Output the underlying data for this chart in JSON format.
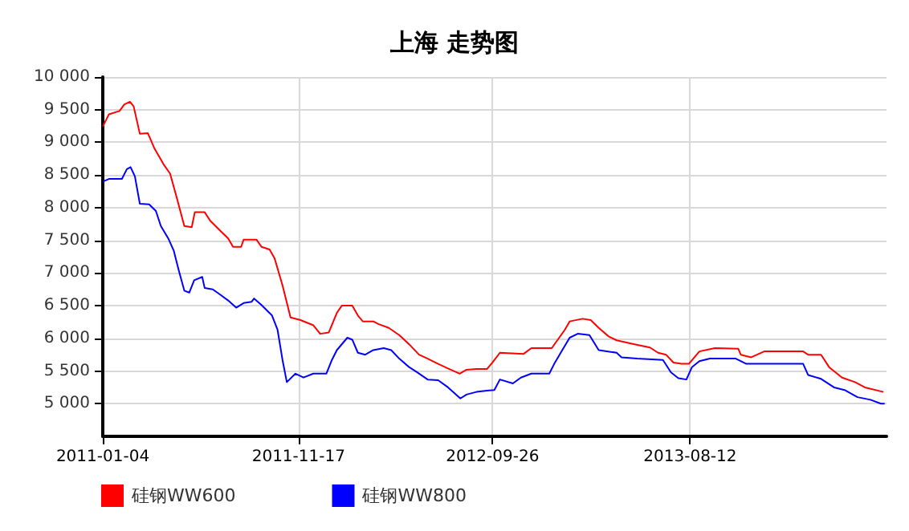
{
  "chart_data": {
    "type": "line",
    "title": "上海 走势图",
    "xlim": [
      "2011-01-04",
      "2014-06-26"
    ],
    "xticks": [
      "2011-01-04",
      "2011-11-17",
      "2012-09-26",
      "2013-08-12"
    ],
    "ylim": [
      4500,
      10000
    ],
    "yticks": [
      5000,
      5500,
      6000,
      6500,
      7000,
      7500,
      8000,
      8500,
      9000,
      9500,
      10000
    ],
    "grid": true,
    "legend": "bottom left",
    "marker": "none",
    "line_style": "solid",
    "series": [
      {
        "name": "硅钢WW600",
        "color": "#ff0000",
        "x": [
          "2011-01-04",
          "2011-01-14",
          "2011-01-31",
          "2011-02-08",
          "2011-02-17",
          "2011-02-23",
          "2011-03-05",
          "2011-03-18",
          "2011-03-29",
          "2011-04-12",
          "2011-04-23",
          "2011-05-03",
          "2011-05-16",
          "2011-05-28",
          "2011-06-02",
          "2011-06-18",
          "2011-06-27",
          "2011-07-13",
          "2011-07-26",
          "2011-08-03",
          "2011-08-16",
          "2011-08-20",
          "2011-09-10",
          "2011-09-18",
          "2011-10-01",
          "2011-10-09",
          "2011-10-22",
          "2011-11-04",
          "2011-11-20",
          "2011-12-11",
          "2011-12-22",
          "2012-01-05",
          "2012-01-18",
          "2012-01-26",
          "2012-02-12",
          "2012-02-21",
          "2012-02-29",
          "2012-03-17",
          "2012-03-25",
          "2012-04-11",
          "2012-04-28",
          "2012-05-14",
          "2012-05-30",
          "2012-06-13",
          "2012-06-30",
          "2012-07-16",
          "2012-08-04",
          "2012-08-15",
          "2012-08-31",
          "2012-09-17",
          "2012-09-26",
          "2012-10-08",
          "2012-11-15",
          "2012-11-28",
          "2012-12-31",
          "2013-01-09",
          "2013-01-21",
          "2013-01-29",
          "2013-02-19",
          "2013-03-04",
          "2013-03-17",
          "2013-04-02",
          "2013-04-15",
          "2013-05-14",
          "2013-06-08",
          "2013-06-21",
          "2013-07-04",
          "2013-07-16",
          "2013-07-29",
          "2013-08-10",
          "2013-08-27",
          "2013-09-21",
          "2013-10-29",
          "2013-11-02",
          "2013-11-19",
          "2013-12-10",
          "2014-02-11",
          "2014-02-19",
          "2014-03-12",
          "2014-03-25",
          "2014-04-15",
          "2014-05-06",
          "2014-05-22",
          "2014-06-21"
        ],
        "values": [
          9240,
          9430,
          9480,
          9580,
          9620,
          9550,
          9130,
          9140,
          8900,
          8670,
          8520,
          8180,
          7720,
          7700,
          7930,
          7930,
          7800,
          7650,
          7530,
          7400,
          7400,
          7510,
          7510,
          7400,
          7360,
          7230,
          6810,
          6320,
          6280,
          6200,
          6070,
          6090,
          6390,
          6500,
          6500,
          6350,
          6260,
          6260,
          6220,
          6160,
          6050,
          5910,
          5750,
          5690,
          5610,
          5540,
          5460,
          5520,
          5530,
          5530,
          5630,
          5780,
          5760,
          5850,
          5850,
          5970,
          6130,
          6260,
          6300,
          6280,
          6160,
          6030,
          5970,
          5910,
          5860,
          5780,
          5750,
          5630,
          5610,
          5610,
          5800,
          5850,
          5840,
          5750,
          5710,
          5800,
          5800,
          5750,
          5750,
          5560,
          5400,
          5330,
          5250,
          5180
        ]
      },
      {
        "name": "硅钢WW800",
        "color": "#0000ff",
        "x": [
          "2011-01-04",
          "2011-01-14",
          "2011-02-04",
          "2011-02-12",
          "2011-02-18",
          "2011-02-25",
          "2011-03-05",
          "2011-03-20",
          "2011-03-31",
          "2011-04-08",
          "2011-04-20",
          "2011-04-29",
          "2011-05-07",
          "2011-05-16",
          "2011-05-24",
          "2011-06-01",
          "2011-06-14",
          "2011-06-18",
          "2011-07-01",
          "2011-07-13",
          "2011-07-26",
          "2011-08-08",
          "2011-08-20",
          "2011-09-02",
          "2011-09-06",
          "2011-09-18",
          "2011-10-05",
          "2011-10-14",
          "2011-10-22",
          "2011-10-29",
          "2011-11-12",
          "2011-11-25",
          "2011-12-11",
          "2012-01-01",
          "2012-01-10",
          "2012-01-18",
          "2012-02-04",
          "2012-02-12",
          "2012-02-21",
          "2012-03-04",
          "2012-03-17",
          "2012-04-03",
          "2012-04-15",
          "2012-04-28",
          "2012-05-14",
          "2012-05-27",
          "2012-06-13",
          "2012-06-30",
          "2012-07-16",
          "2012-08-05",
          "2012-08-15",
          "2012-08-31",
          "2012-09-17",
          "2012-09-29",
          "2012-10-08",
          "2012-10-29",
          "2012-11-11",
          "2012-11-28",
          "2012-12-27",
          "2013-01-04",
          "2013-01-17",
          "2013-01-29",
          "2013-02-11",
          "2013-03-02",
          "2013-03-17",
          "2013-04-15",
          "2013-04-23",
          "2013-05-18",
          "2013-06-29",
          "2013-07-12",
          "2013-07-24",
          "2013-08-06",
          "2013-08-15",
          "2013-08-27",
          "2013-09-13",
          "2013-10-25",
          "2013-11-11",
          "2014-02-11",
          "2014-02-19",
          "2014-03-12",
          "2014-04-02",
          "2014-04-19",
          "2014-05-10",
          "2014-05-31",
          "2014-06-17",
          "2014-06-23"
        ],
        "values": [
          8400,
          8440,
          8440,
          8590,
          8620,
          8480,
          8060,
          8050,
          7950,
          7720,
          7530,
          7340,
          7040,
          6730,
          6700,
          6890,
          6940,
          6770,
          6750,
          6670,
          6580,
          6470,
          6540,
          6560,
          6610,
          6510,
          6350,
          6130,
          5670,
          5330,
          5460,
          5400,
          5460,
          5460,
          5670,
          5820,
          6010,
          5980,
          5780,
          5750,
          5820,
          5850,
          5820,
          5690,
          5560,
          5480,
          5370,
          5360,
          5250,
          5080,
          5140,
          5180,
          5200,
          5210,
          5370,
          5310,
          5400,
          5460,
          5460,
          5610,
          5820,
          6010,
          6070,
          6050,
          5820,
          5780,
          5710,
          5690,
          5670,
          5480,
          5390,
          5370,
          5560,
          5650,
          5690,
          5690,
          5610,
          5610,
          5440,
          5380,
          5250,
          5210,
          5100,
          5060,
          5000,
          5000
        ]
      }
    ]
  }
}
